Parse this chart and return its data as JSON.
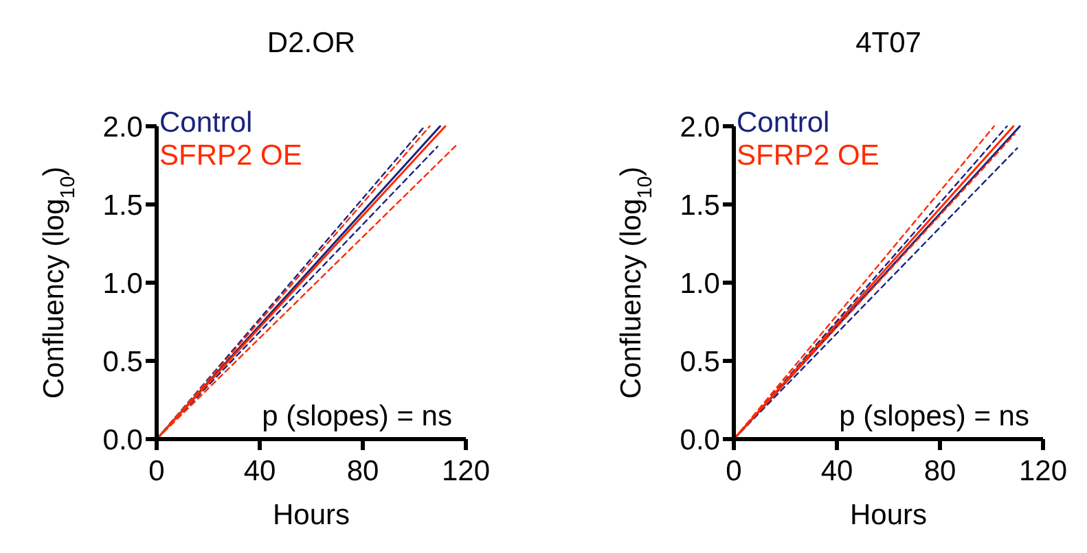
{
  "chart_data": [
    {
      "type": "line",
      "title": "D2.OR",
      "xlabel": "Hours",
      "ylabel": "Confluency (log$_{10}$)",
      "xlim": [
        0,
        120
      ],
      "ylim": [
        0,
        2.0
      ],
      "xticks": [
        0,
        40,
        80,
        120
      ],
      "yticks": [
        {
          "value": 0,
          "label": "0.0"
        },
        {
          "value": 0.5,
          "label": "0.5"
        },
        {
          "value": 1,
          "label": "1.0"
        },
        {
          "value": 1.5,
          "label": "1.5"
        },
        {
          "value": 2,
          "label": "2.0"
        }
      ],
      "legend": "top left",
      "line_style": "solid",
      "annotations": [
        "p (slopes) = ns"
      ],
      "series": [
        {
          "name": "Control",
          "color": "#1a237e",
          "x": [
            0,
            110
          ],
          "values": [
            0,
            2.0
          ]
        },
        {
          "color": "#1a237e",
          "x": [
            0,
            104
          ],
          "values": [
            0,
            2.0
          ],
          "line_style": "dashed"
        },
        {
          "color": "#1a237e",
          "x": [
            0,
            109
          ],
          "values": [
            0,
            1.87
          ],
          "line_style": "dashed"
        },
        {
          "name": "SFRP2 OE",
          "color": "#ff2a00",
          "x": [
            0,
            112
          ],
          "values": [
            0,
            2.0
          ]
        },
        {
          "color": "#ff2a00",
          "x": [
            0,
            106
          ],
          "values": [
            0,
            2.0
          ],
          "line_style": "dashed"
        },
        {
          "color": "#ff2a00",
          "x": [
            0,
            117
          ],
          "values": [
            0,
            1.89
          ],
          "line_style": "dashed"
        }
      ]
    },
    {
      "type": "line",
      "title": "4T07",
      "xlabel": "Hours",
      "ylabel": "Confluency (log$_{10}$)",
      "xlim": [
        0,
        120
      ],
      "ylim": [
        0,
        2.0
      ],
      "xticks": [
        0,
        40,
        80,
        120
      ],
      "yticks": [
        {
          "value": 0,
          "label": "0.0"
        },
        {
          "value": 0.5,
          "label": "0.5"
        },
        {
          "value": 1,
          "label": "1.0"
        },
        {
          "value": 1.5,
          "label": "1.5"
        },
        {
          "value": 2,
          "label": "2.0"
        }
      ],
      "legend": "top left",
      "line_style": "solid",
      "annotations": [
        "p (slopes) = ns"
      ],
      "series": [
        {
          "name": "Control",
          "color": "#1a237e",
          "x": [
            0,
            111
          ],
          "values": [
            0,
            2.0
          ]
        },
        {
          "color": "#1a237e",
          "x": [
            0,
            106
          ],
          "values": [
            0,
            2.0
          ],
          "line_style": "dashed"
        },
        {
          "color": "#1a237e",
          "x": [
            0,
            110
          ],
          "values": [
            0,
            1.86
          ],
          "line_style": "dashed"
        },
        {
          "name": "SFRP2 OE",
          "color": "#ff2a00",
          "x": [
            0,
            108.5
          ],
          "values": [
            0,
            2.0
          ]
        },
        {
          "color": "#ff2a00",
          "x": [
            0,
            101
          ],
          "values": [
            0,
            2.0
          ],
          "line_style": "dashed"
        },
        {
          "color": "#ff2a00",
          "x": [
            0,
            109
          ],
          "values": [
            0,
            1.95
          ],
          "line_style": "dashed"
        }
      ]
    }
  ]
}
